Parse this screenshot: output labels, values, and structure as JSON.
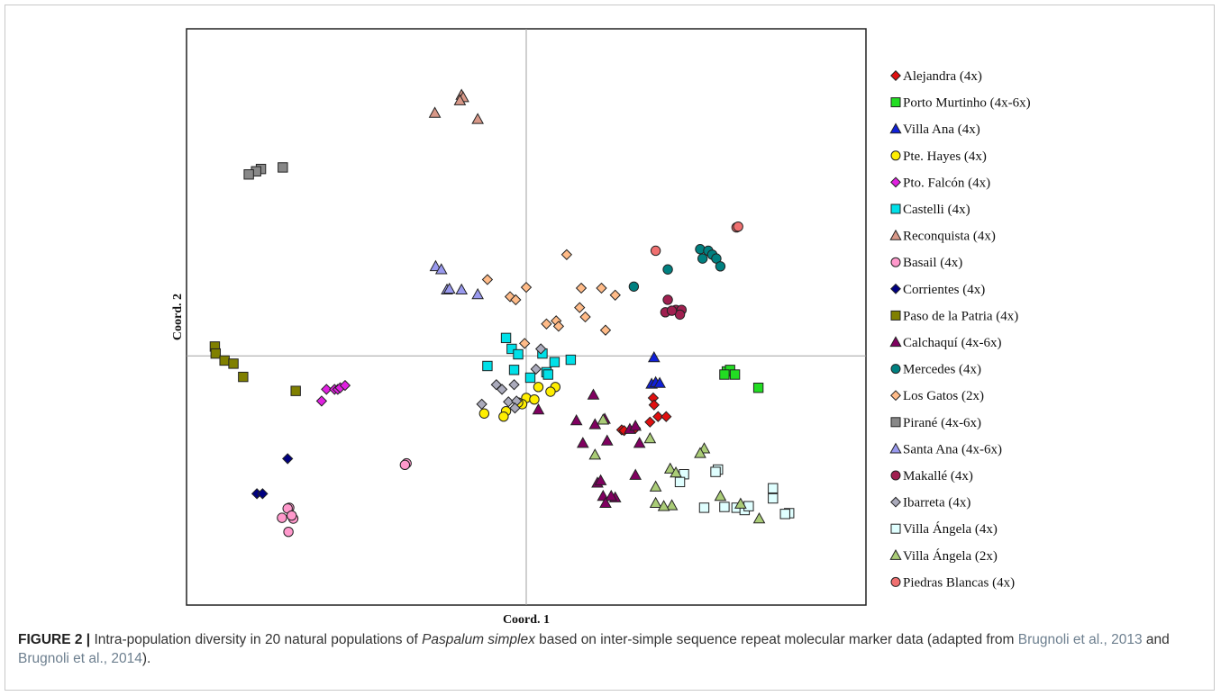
{
  "chart_data": {
    "type": "scatter",
    "xlabel": "Coord. 1",
    "ylabel": "Coord. 2",
    "xlim": [
      -4.2,
      4.2
    ],
    "ylim": [
      -3.2,
      4.2
    ],
    "grid": false,
    "zero_lines": true,
    "legend_position": "right",
    "series": [
      {
        "name": "Alejandra (4x)",
        "marker": "diamond",
        "color": "#e01010",
        "points": [
          [
            1.57,
            -0.54
          ],
          [
            1.58,
            -0.63
          ],
          [
            1.53,
            -0.85
          ],
          [
            1.35,
            -0.93
          ],
          [
            1.18,
            -0.95
          ],
          [
            1.21,
            -0.96
          ],
          [
            1.63,
            -0.78
          ],
          [
            1.73,
            -0.78
          ]
        ]
      },
      {
        "name": "Porto Murtinho (4x-6x)",
        "marker": "square",
        "color": "#22dd22",
        "points": [
          [
            2.48,
            -0.2
          ],
          [
            2.52,
            -0.18
          ],
          [
            2.45,
            -0.24
          ],
          [
            2.58,
            -0.24
          ],
          [
            2.87,
            -0.41
          ]
        ]
      },
      {
        "name": "Villa Ana (4x)",
        "marker": "triangle",
        "color": "#1020d8",
        "points": [
          [
            1.58,
            -0.02
          ],
          [
            1.55,
            -0.36
          ],
          [
            1.6,
            -0.34
          ],
          [
            1.65,
            -0.35
          ]
        ]
      },
      {
        "name": "Pte. Hayes (4x)",
        "marker": "circle",
        "color": "#ffee00",
        "points": [
          [
            0.15,
            -0.4
          ],
          [
            0.36,
            -0.4
          ],
          [
            0.3,
            -0.46
          ],
          [
            0.0,
            -0.54
          ],
          [
            -0.05,
            -0.62
          ],
          [
            0.1,
            -0.56
          ],
          [
            -0.52,
            -0.74
          ],
          [
            -0.25,
            -0.71
          ],
          [
            -0.1,
            -0.6
          ],
          [
            -0.28,
            -0.78
          ]
        ]
      },
      {
        "name": "Pto. Falcón (4x)",
        "marker": "diamond",
        "color": "#e020e0",
        "points": [
          [
            -2.47,
            -0.43
          ],
          [
            -2.37,
            -0.43
          ],
          [
            -2.33,
            -0.43
          ],
          [
            -2.3,
            -0.41
          ],
          [
            -2.24,
            -0.38
          ],
          [
            -2.53,
            -0.58
          ]
        ]
      },
      {
        "name": "Castelli (4x)",
        "marker": "square",
        "color": "#00e0e8",
        "points": [
          [
            -0.25,
            0.23
          ],
          [
            -0.18,
            0.09
          ],
          [
            -0.1,
            0.02
          ],
          [
            0.2,
            0.03
          ],
          [
            0.35,
            -0.08
          ],
          [
            0.55,
            -0.05
          ],
          [
            -0.48,
            -0.13
          ],
          [
            -0.15,
            -0.18
          ],
          [
            0.25,
            -0.21
          ],
          [
            0.05,
            -0.28
          ],
          [
            0.27,
            -0.24
          ]
        ]
      },
      {
        "name": "Reconquista (4x)",
        "marker": "triangle",
        "color": "#d89888",
        "points": [
          [
            -0.8,
            3.35
          ],
          [
            -0.78,
            3.32
          ],
          [
            -0.82,
            3.28
          ],
          [
            -1.13,
            3.12
          ],
          [
            -0.6,
            3.04
          ]
        ]
      },
      {
        "name": "Basail (4x)",
        "marker": "circle",
        "color": "#ff99cc",
        "points": [
          [
            -1.48,
            -1.38
          ],
          [
            -1.5,
            -1.4
          ],
          [
            -2.93,
            -1.95
          ],
          [
            -2.95,
            -1.96
          ],
          [
            -3.02,
            -2.08
          ],
          [
            -2.94,
            -2.26
          ],
          [
            -2.88,
            -2.09
          ],
          [
            -2.9,
            -2.05
          ]
        ]
      },
      {
        "name": "Corrientes (4x)",
        "marker": "diamond",
        "color": "#000080",
        "points": [
          [
            -2.95,
            -1.32
          ],
          [
            -3.33,
            -1.77
          ],
          [
            -3.26,
            -1.77
          ]
        ]
      },
      {
        "name": "Paso de la Patria (4x)",
        "marker": "square",
        "color": "#808000",
        "points": [
          [
            -3.85,
            0.12
          ],
          [
            -3.84,
            0.03
          ],
          [
            -3.73,
            -0.06
          ],
          [
            -3.62,
            -0.1
          ],
          [
            -3.5,
            -0.27
          ],
          [
            -2.85,
            -0.45
          ]
        ]
      },
      {
        "name": "Calchaquí (4x-6x)",
        "marker": "triangle",
        "color": "#800060",
        "points": [
          [
            0.15,
            -0.69
          ],
          [
            0.83,
            -0.5
          ],
          [
            0.62,
            -0.83
          ],
          [
            0.85,
            -0.88
          ],
          [
            0.97,
            -0.81
          ],
          [
            1.28,
            -0.94
          ],
          [
            1.35,
            -0.9
          ],
          [
            0.7,
            -1.12
          ],
          [
            1.0,
            -1.09
          ],
          [
            1.4,
            -1.12
          ],
          [
            0.88,
            -1.63
          ],
          [
            0.92,
            -1.6
          ],
          [
            0.95,
            -1.8
          ],
          [
            1.1,
            -1.82
          ],
          [
            1.05,
            -1.8
          ],
          [
            0.98,
            -1.89
          ],
          [
            1.35,
            -1.53
          ]
        ]
      },
      {
        "name": "Mercedes (4x)",
        "marker": "circle",
        "color": "#008080",
        "points": [
          [
            2.15,
            1.37
          ],
          [
            2.25,
            1.35
          ],
          [
            2.3,
            1.3
          ],
          [
            2.18,
            1.25
          ],
          [
            2.35,
            1.25
          ],
          [
            2.4,
            1.15
          ],
          [
            1.75,
            1.11
          ],
          [
            1.33,
            0.89
          ]
        ]
      },
      {
        "name": "Los Gatos (2x)",
        "marker": "diamond",
        "color": "#ffbb88",
        "points": [
          [
            0.5,
            1.3
          ],
          [
            -0.48,
            0.98
          ],
          [
            0.0,
            0.88
          ],
          [
            0.68,
            0.87
          ],
          [
            0.93,
            0.87
          ],
          [
            1.1,
            0.78
          ],
          [
            -0.2,
            0.76
          ],
          [
            -0.13,
            0.72
          ],
          [
            0.66,
            0.62
          ],
          [
            0.73,
            0.5
          ],
          [
            0.25,
            0.41
          ],
          [
            0.37,
            0.45
          ],
          [
            0.4,
            0.38
          ],
          [
            0.98,
            0.33
          ],
          [
            -0.02,
            0.16
          ]
        ]
      },
      {
        "name": "Pirané (4x-6x)",
        "marker": "square",
        "color": "#888888",
        "points": [
          [
            -3.28,
            2.4
          ],
          [
            -3.34,
            2.37
          ],
          [
            -3.43,
            2.33
          ],
          [
            -3.01,
            2.42
          ]
        ]
      },
      {
        "name": "Santa Ana (4x-6x)",
        "marker": "triangle",
        "color": "#9999ee",
        "points": [
          [
            -1.12,
            1.15
          ],
          [
            -1.05,
            1.11
          ],
          [
            -0.98,
            0.85
          ],
          [
            -0.95,
            0.86
          ],
          [
            -0.8,
            0.85
          ],
          [
            -0.6,
            0.79
          ]
        ]
      },
      {
        "name": "Makallé (4x)",
        "marker": "circle",
        "color": "#a02050",
        "points": [
          [
            1.75,
            0.72
          ],
          [
            1.85,
            0.59
          ],
          [
            1.92,
            0.59
          ],
          [
            1.72,
            0.56
          ],
          [
            1.9,
            0.53
          ],
          [
            1.8,
            0.58
          ]
        ]
      },
      {
        "name": "Ibarreta (4x)",
        "marker": "diamond",
        "color": "#aaaabb",
        "points": [
          [
            0.18,
            0.09
          ],
          [
            0.12,
            -0.17
          ],
          [
            -0.37,
            -0.37
          ],
          [
            -0.3,
            -0.43
          ],
          [
            -0.15,
            -0.37
          ],
          [
            -0.22,
            -0.59
          ],
          [
            -0.12,
            -0.58
          ],
          [
            -0.55,
            -0.62
          ],
          [
            -0.14,
            -0.67
          ]
        ]
      },
      {
        "name": "Villa Ángela (4x)",
        "marker": "square",
        "color": "#e0ffff",
        "points": [
          [
            2.37,
            -1.46
          ],
          [
            2.34,
            -1.49
          ],
          [
            1.95,
            -1.52
          ],
          [
            1.9,
            -1.62
          ],
          [
            3.05,
            -1.7
          ],
          [
            3.05,
            -1.83
          ],
          [
            2.2,
            -1.95
          ],
          [
            2.45,
            -1.94
          ],
          [
            2.6,
            -1.95
          ],
          [
            2.7,
            -1.98
          ],
          [
            2.75,
            -1.93
          ],
          [
            3.25,
            -2.02
          ],
          [
            3.2,
            -2.03
          ]
        ]
      },
      {
        "name": "Villa Ángela (2x)",
        "marker": "triangle",
        "color": "#aacc77",
        "points": [
          [
            2.2,
            -1.19
          ],
          [
            2.15,
            -1.25
          ],
          [
            1.53,
            -1.06
          ],
          [
            0.95,
            -0.82
          ],
          [
            1.78,
            -1.45
          ],
          [
            1.85,
            -1.5
          ],
          [
            1.6,
            -1.68
          ],
          [
            1.8,
            -1.92
          ],
          [
            1.6,
            -1.89
          ],
          [
            1.7,
            -1.93
          ],
          [
            2.4,
            -1.8
          ],
          [
            2.65,
            -1.9
          ],
          [
            2.88,
            -2.09
          ],
          [
            0.85,
            -1.27
          ]
        ]
      },
      {
        "name": "Piedras Blancas (4x)",
        "marker": "circle",
        "color": "#f07070",
        "points": [
          [
            2.6,
            1.65
          ],
          [
            2.62,
            1.66
          ],
          [
            1.6,
            1.35
          ]
        ]
      }
    ]
  },
  "caption": {
    "label": "FIGURE 2 |",
    "text_before": " Intra-population diversity in 20 natural populations of ",
    "species": "Paspalum simplex",
    "text_after": " based on inter-simple sequence repeat molecular marker data (adapted from ",
    "ref1": "Brugnoli et al., 2013",
    "conj": " and ",
    "ref2": "Brugnoli et al., 2014",
    "end": ")."
  }
}
